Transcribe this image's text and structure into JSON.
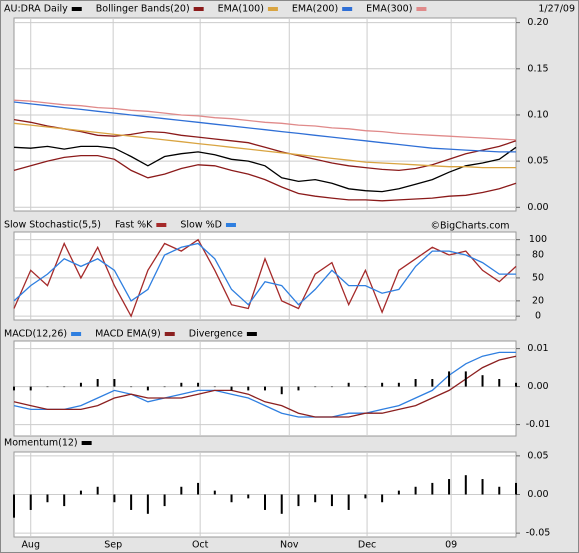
{
  "chart_data": [
    {
      "type": "line",
      "date": "1/27/09",
      "x": [
        0,
        4,
        8,
        12,
        16,
        20,
        24,
        28,
        32,
        36,
        40,
        44,
        48,
        52,
        56,
        60,
        64,
        68,
        72,
        76,
        80,
        84,
        88,
        92,
        96,
        100,
        104,
        108,
        112,
        116,
        120
      ],
      "ylim": [
        -0.004,
        0.205
      ],
      "yticks": [
        {
          "value": 0.2,
          "label": "0.20"
        },
        0.15,
        {
          "value": 0.1,
          "label": "0.10"
        },
        0.05,
        {
          "value": 0,
          "label": "0.00"
        }
      ],
      "grid": true,
      "series": [
        {
          "name": "AU:DRA Daily",
          "color": "#000000",
          "values": [
            0.065,
            0.064,
            0.066,
            0.063,
            0.066,
            0.066,
            0.064,
            0.055,
            0.045,
            0.055,
            0.058,
            0.06,
            0.057,
            0.052,
            0.05,
            0.045,
            0.032,
            0.028,
            0.03,
            0.026,
            0.02,
            0.018,
            0.017,
            0.02,
            0.025,
            0.03,
            0.038,
            0.045,
            0.048,
            0.052,
            0.065
          ]
        },
        {
          "name": "Bollinger Bands(20)",
          "color": "#8b1a1a",
          "upper": [
            0.095,
            0.092,
            0.088,
            0.085,
            0.082,
            0.078,
            0.077,
            0.079,
            0.082,
            0.081,
            0.078,
            0.076,
            0.074,
            0.072,
            0.07,
            0.065,
            0.06,
            0.056,
            0.052,
            0.048,
            0.045,
            0.043,
            0.041,
            0.04,
            0.042,
            0.046,
            0.052,
            0.058,
            0.062,
            0.066,
            0.072
          ],
          "lower": [
            0.04,
            0.045,
            0.05,
            0.054,
            0.056,
            0.056,
            0.052,
            0.04,
            0.032,
            0.036,
            0.042,
            0.046,
            0.045,
            0.04,
            0.036,
            0.03,
            0.022,
            0.015,
            0.012,
            0.01,
            0.008,
            0.008,
            0.007,
            0.008,
            0.009,
            0.01,
            0.012,
            0.013,
            0.016,
            0.02,
            0.026
          ]
        },
        {
          "name": "EMA(100)",
          "color": "#d9a441",
          "values": [
            0.091,
            0.089,
            0.087,
            0.085,
            0.083,
            0.081,
            0.079,
            0.077,
            0.075,
            0.073,
            0.071,
            0.069,
            0.067,
            0.065,
            0.063,
            0.061,
            0.059,
            0.057,
            0.055,
            0.053,
            0.051,
            0.049,
            0.048,
            0.047,
            0.046,
            0.045,
            0.044,
            0.044,
            0.043,
            0.043,
            0.043
          ]
        },
        {
          "name": "EMA(200)",
          "color": "#2f6fd6",
          "values": [
            0.114,
            0.112,
            0.11,
            0.108,
            0.106,
            0.104,
            0.102,
            0.1,
            0.098,
            0.096,
            0.094,
            0.092,
            0.09,
            0.088,
            0.086,
            0.084,
            0.082,
            0.08,
            0.078,
            0.076,
            0.074,
            0.072,
            0.07,
            0.068,
            0.066,
            0.064,
            0.063,
            0.062,
            0.061,
            0.06,
            0.06
          ]
        },
        {
          "name": "EMA(300)",
          "color": "#e08a8a",
          "values": [
            0.116,
            0.115,
            0.113,
            0.111,
            0.11,
            0.108,
            0.107,
            0.105,
            0.104,
            0.102,
            0.1,
            0.099,
            0.097,
            0.096,
            0.094,
            0.092,
            0.091,
            0.089,
            0.088,
            0.086,
            0.085,
            0.083,
            0.082,
            0.08,
            0.079,
            0.078,
            0.077,
            0.076,
            0.075,
            0.074,
            0.073
          ]
        }
      ]
    },
    {
      "type": "line",
      "title": "Slow Stochastic(5,5)",
      "annotation": "©BigCharts.com",
      "x": [
        0,
        4,
        8,
        12,
        16,
        20,
        24,
        28,
        32,
        36,
        40,
        44,
        48,
        52,
        56,
        60,
        64,
        68,
        72,
        76,
        80,
        84,
        88,
        92,
        96,
        100,
        104,
        108,
        112,
        116,
        120
      ],
      "ylim": [
        -5,
        110
      ],
      "yticks": [
        100,
        80,
        50,
        20,
        0
      ],
      "grid": true,
      "series": [
        {
          "name": "Fast %K",
          "color": "#a52a2a",
          "values": [
            10,
            60,
            40,
            95,
            50,
            90,
            40,
            0,
            60,
            95,
            85,
            100,
            60,
            15,
            10,
            75,
            20,
            10,
            55,
            70,
            15,
            60,
            5,
            60,
            75,
            90,
            80,
            85,
            60,
            45,
            65
          ]
        },
        {
          "name": "Slow %D",
          "color": "#2f7fe0",
          "values": [
            20,
            40,
            55,
            75,
            65,
            75,
            60,
            20,
            35,
            80,
            90,
            95,
            75,
            35,
            15,
            45,
            40,
            15,
            35,
            60,
            40,
            40,
            30,
            35,
            65,
            85,
            85,
            80,
            70,
            55,
            55
          ]
        }
      ]
    },
    {
      "type": "line",
      "x": [
        0,
        4,
        8,
        12,
        16,
        20,
        24,
        28,
        32,
        36,
        40,
        44,
        48,
        52,
        56,
        60,
        64,
        68,
        72,
        76,
        80,
        84,
        88,
        92,
        96,
        100,
        104,
        108,
        112,
        116,
        120
      ],
      "ylim": [
        -0.013,
        0.012
      ],
      "yticks": [
        0.01,
        {
          "value": 0,
          "label": "0.00"
        },
        -0.01
      ],
      "grid": true,
      "series": [
        {
          "name": "MACD(12,26)",
          "color": "#2f7fe0",
          "values": [
            -0.005,
            -0.006,
            -0.006,
            -0.006,
            -0.005,
            -0.003,
            -0.001,
            -0.002,
            -0.004,
            -0.003,
            -0.002,
            -0.001,
            -0.001,
            -0.002,
            -0.003,
            -0.005,
            -0.007,
            -0.008,
            -0.008,
            -0.008,
            -0.007,
            -0.007,
            -0.006,
            -0.005,
            -0.003,
            -0.001,
            0.003,
            0.006,
            0.008,
            0.009,
            0.009
          ]
        },
        {
          "name": "MACD EMA(9)",
          "color": "#8b2020",
          "values": [
            -0.004,
            -0.005,
            -0.006,
            -0.006,
            -0.006,
            -0.005,
            -0.003,
            -0.002,
            -0.003,
            -0.003,
            -0.003,
            -0.002,
            -0.001,
            -0.001,
            -0.002,
            -0.004,
            -0.005,
            -0.007,
            -0.008,
            -0.008,
            -0.008,
            -0.007,
            -0.007,
            -0.006,
            -0.005,
            -0.003,
            -0.001,
            0.002,
            0.005,
            0.007,
            0.008
          ]
        },
        {
          "name": "Divergence",
          "color": "#000000",
          "type": "bar",
          "values": [
            -0.001,
            -0.001,
            0,
            0,
            0.001,
            0.002,
            0.002,
            0,
            -0.001,
            0,
            0.001,
            0.001,
            0,
            -0.001,
            -0.001,
            -0.001,
            -0.002,
            -0.001,
            0,
            0,
            0.001,
            0,
            0.001,
            0.001,
            0.002,
            0.002,
            0.004,
            0.004,
            0.003,
            0.002,
            0.001
          ]
        }
      ]
    },
    {
      "type": "bar",
      "x": [
        0,
        4,
        8,
        12,
        16,
        20,
        24,
        28,
        32,
        36,
        40,
        44,
        48,
        52,
        56,
        60,
        64,
        68,
        72,
        76,
        80,
        84,
        88,
        92,
        96,
        100,
        104,
        108,
        112,
        116,
        120
      ],
      "xlim": [
        0,
        120
      ],
      "xticks": [
        {
          "value": 4,
          "label": "Aug"
        },
        {
          "value": 23.7,
          "label": "Sep"
        },
        {
          "value": 44.5,
          "label": "Oct"
        },
        {
          "value": 65.8,
          "label": "Nov"
        },
        {
          "value": 84.4,
          "label": "Dec"
        },
        {
          "value": 104.5,
          "label": "09"
        }
      ],
      "ylim": [
        -0.055,
        0.055
      ],
      "yticks": [
        0.05,
        {
          "value": 0,
          "label": "0.00"
        },
        -0.05
      ],
      "grid": true,
      "series": [
        {
          "name": "Momentum(12)",
          "color": "#000000",
          "values": [
            -0.03,
            -0.02,
            -0.01,
            -0.015,
            0.005,
            0.01,
            -0.01,
            -0.02,
            -0.025,
            -0.015,
            0.01,
            0.015,
            0.005,
            -0.01,
            -0.005,
            -0.02,
            -0.025,
            -0.015,
            -0.01,
            -0.015,
            -0.02,
            -0.005,
            -0.01,
            0.005,
            0.01,
            0.015,
            0.02,
            0.025,
            0.02,
            0.01,
            0.015
          ]
        }
      ]
    }
  ]
}
